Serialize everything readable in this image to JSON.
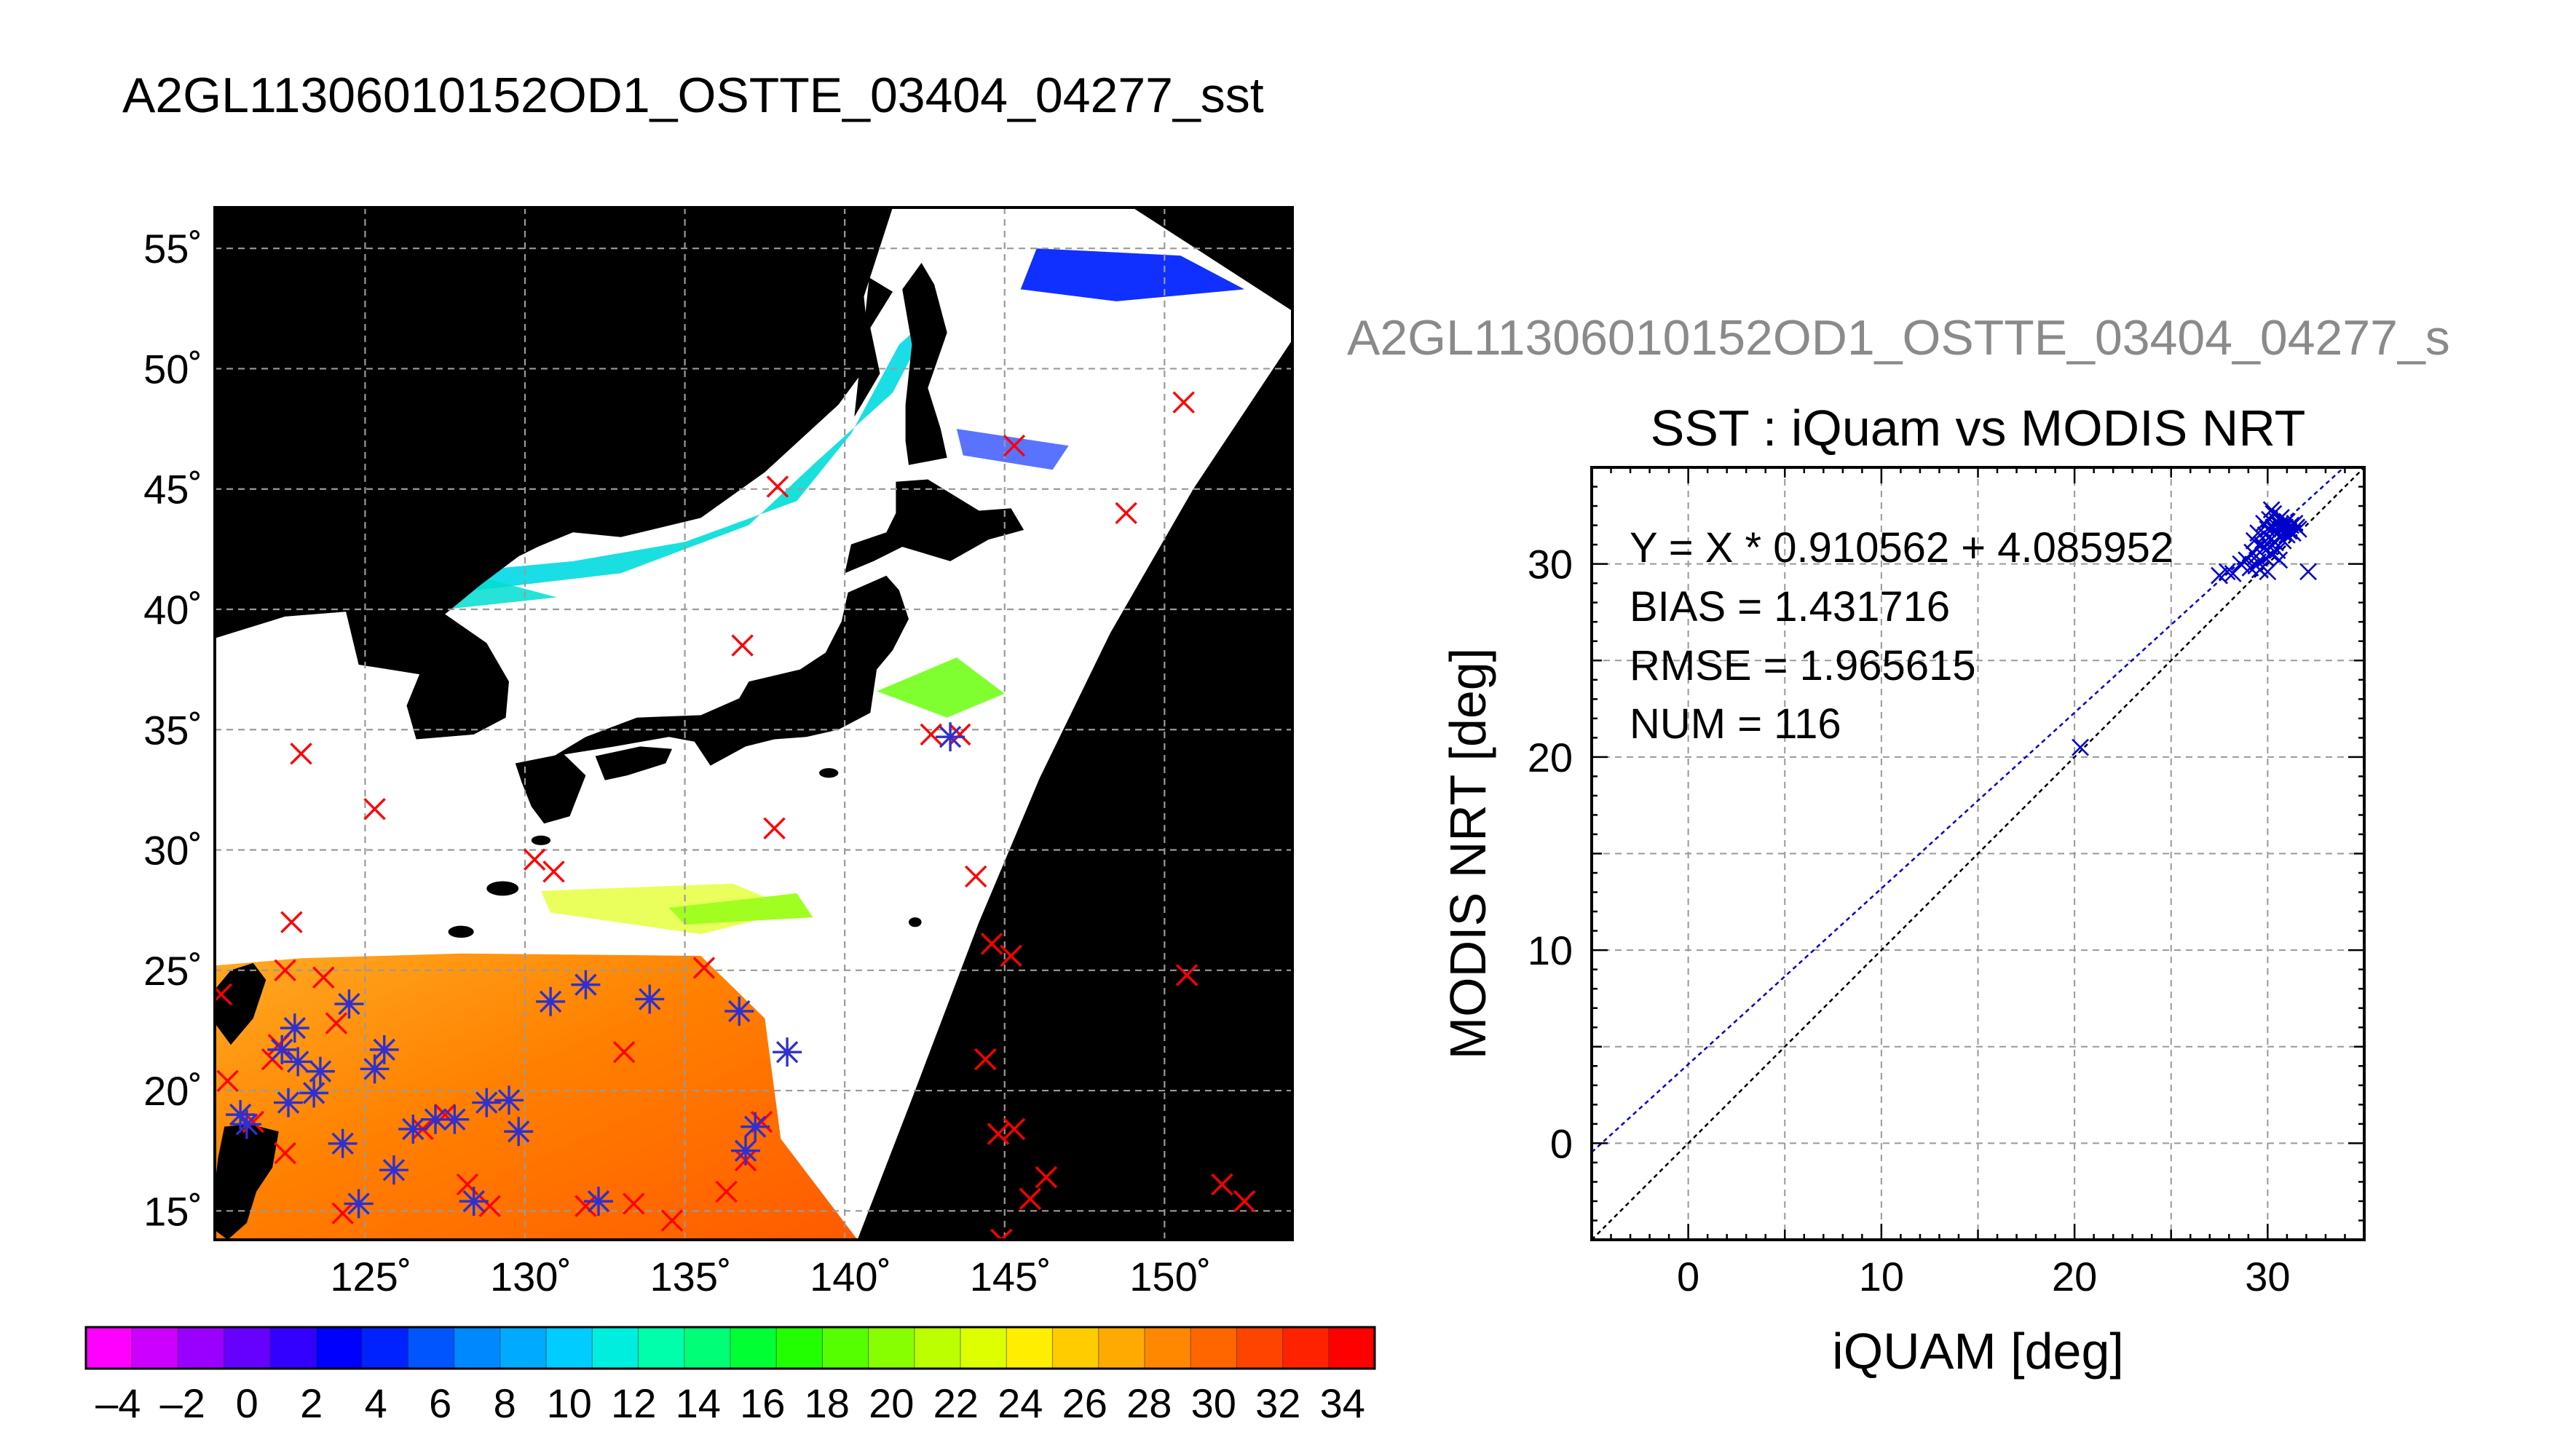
{
  "map_title": "A2GL11306010152OD1_OSTTE_03404_04277_sst",
  "scatter_title": "A2GL11306010152OD1_OSTTE_03404_04277_s",
  "chart_data": [
    {
      "type": "heatmap",
      "lon_ticks": [
        "125˚",
        "130˚",
        "135˚",
        "140˚",
        "145˚",
        "150˚"
      ],
      "lat_ticks": [
        "55˚",
        "50˚",
        "45˚",
        "40˚",
        "35˚",
        "30˚",
        "25˚",
        "20˚",
        "15˚"
      ],
      "lon_range": [
        120.3,
        154
      ],
      "lat_range": [
        13.8,
        56.7
      ],
      "grid": true,
      "colorbar": {
        "range": [
          -5,
          35
        ],
        "tick_labels": [
          "–4",
          "–2",
          "0",
          "2",
          "4",
          "6",
          "8",
          "10",
          "12",
          "14",
          "16",
          "18",
          "20",
          "22",
          "24",
          "26",
          "28",
          "30",
          "32",
          "34"
        ],
        "colors": [
          "#ff00ff",
          "#cc00ff",
          "#9900ff",
          "#6600ff",
          "#3300ff",
          "#0000ff",
          "#0022ff",
          "#0055ff",
          "#0088ff",
          "#00aaff",
          "#00ccff",
          "#00eedd",
          "#00ffaa",
          "#00ff77",
          "#00ff33",
          "#22ff00",
          "#55ff00",
          "#88ff00",
          "#bbff00",
          "#ddff00",
          "#ffee00",
          "#ffcc00",
          "#ffaa00",
          "#ff8800",
          "#ff6600",
          "#ff4400",
          "#ff2200",
          "#ff0000"
        ]
      },
      "land_color": "#000000",
      "cloud_color": "#ffffff",
      "validation_points_red": [
        [
          120.5,
          24
        ],
        [
          120.7,
          20.4
        ],
        [
          121.5,
          18.7
        ],
        [
          122.1,
          21.3
        ],
        [
          122.3,
          21.9
        ],
        [
          122.5,
          17.4
        ],
        [
          122.7,
          27
        ],
        [
          123,
          34
        ],
        [
          122.5,
          25
        ],
        [
          123.7,
          24.7
        ],
        [
          124.1,
          22.8
        ],
        [
          124.3,
          14.9
        ],
        [
          125.3,
          31.7
        ],
        [
          126.8,
          18.4
        ],
        [
          127.5,
          19
        ],
        [
          128.2,
          16.1
        ],
        [
          128.9,
          15.2
        ],
        [
          130.3,
          29.6
        ],
        [
          130.9,
          29.1
        ],
        [
          131.9,
          15.2
        ],
        [
          133.1,
          21.6
        ],
        [
          133.4,
          15.3
        ],
        [
          134.6,
          14.6
        ],
        [
          135.6,
          25.1
        ],
        [
          136.3,
          15.8
        ],
        [
          136.9,
          17.1
        ],
        [
          137.4,
          18.7
        ],
        [
          136.8,
          38.5
        ],
        [
          137.8,
          30.9
        ],
        [
          137.9,
          45.1
        ],
        [
          142.7,
          34.8
        ],
        [
          143.6,
          34.8
        ],
        [
          144.1,
          28.9
        ],
        [
          144.4,
          21.3
        ],
        [
          144.6,
          26.1
        ],
        [
          144.8,
          18.2
        ],
        [
          145.3,
          18.4
        ],
        [
          145.2,
          25.6
        ],
        [
          144.9,
          13.8
        ],
        [
          145.8,
          15.5
        ],
        [
          146.3,
          16.4
        ],
        [
          145.3,
          46.8
        ],
        [
          148.8,
          44
        ],
        [
          150.6,
          48.6
        ],
        [
          150.7,
          24.8
        ],
        [
          151.8,
          16.1
        ],
        [
          152.5,
          15.4
        ]
      ],
      "validation_points_blue": [
        [
          121.1,
          19
        ],
        [
          121.3,
          18.6
        ],
        [
          122.4,
          21.7
        ],
        [
          122.6,
          19.5
        ],
        [
          122.8,
          22.6
        ],
        [
          122.9,
          21.2
        ],
        [
          123.4,
          19.9
        ],
        [
          123.6,
          20.8
        ],
        [
          124.3,
          17.8
        ],
        [
          124.5,
          23.6
        ],
        [
          125.3,
          20.9
        ],
        [
          125.6,
          21.7
        ],
        [
          125.9,
          16.7
        ],
        [
          124.8,
          15.3
        ],
        [
          126.5,
          18.4
        ],
        [
          127.2,
          18.8
        ],
        [
          127.8,
          18.8
        ],
        [
          128.8,
          19.5
        ],
        [
          129.5,
          19.6
        ],
        [
          129.8,
          18.3
        ],
        [
          128.4,
          15.4
        ],
        [
          130.8,
          23.7
        ],
        [
          131.9,
          24.4
        ],
        [
          133.9,
          23.8
        ],
        [
          132.3,
          15.4
        ],
        [
          136.7,
          23.3
        ],
        [
          136.9,
          17.5
        ],
        [
          137.2,
          18.5
        ],
        [
          138.2,
          21.6
        ],
        [
          143.3,
          34.7
        ]
      ]
    },
    {
      "type": "scatter",
      "title": "SST : iQuam vs MODIS NRT",
      "xlabel": "iQUAM [deg]",
      "ylabel": "MODIS NRT [deg]",
      "xlim": [
        -5,
        35
      ],
      "ylim": [
        -5,
        35
      ],
      "xticks": [
        0,
        10,
        20,
        30
      ],
      "yticks": [
        0,
        10,
        20,
        30
      ],
      "grid": true,
      "annotations": [
        "Y = X * 0.910562 + 4.085952",
        "BIAS = 1.431716",
        "RMSE = 1.965615",
        "NUM = 116"
      ],
      "fit": {
        "slope": 0.910562,
        "intercept": 4.085952,
        "color": "#0000cc"
      },
      "identity_line_color": "#000000",
      "point_color": "#0000cc",
      "points": [
        [
          20.3,
          20.5
        ],
        [
          27.5,
          29.4
        ],
        [
          27.9,
          29.6
        ],
        [
          28.2,
          29.5
        ],
        [
          28.6,
          30
        ],
        [
          28.9,
          30.2
        ],
        [
          29.1,
          29.8
        ],
        [
          29.2,
          30.6
        ],
        [
          29.3,
          31.2
        ],
        [
          29.4,
          30.4
        ],
        [
          29.5,
          31.6
        ],
        [
          29.5,
          30.1
        ],
        [
          29.6,
          29.7
        ],
        [
          29.7,
          31
        ],
        [
          29.8,
          30.8
        ],
        [
          29.8,
          32.1
        ],
        [
          29.9,
          30.3
        ],
        [
          29.9,
          31.5
        ],
        [
          30,
          31.8
        ],
        [
          30,
          29.6
        ],
        [
          30.1,
          30.9
        ],
        [
          30.1,
          32.3
        ],
        [
          30.2,
          31.3
        ],
        [
          30.2,
          30.5
        ],
        [
          30.3,
          31.9
        ],
        [
          30.3,
          32.6
        ],
        [
          30.4,
          31.1
        ],
        [
          30.4,
          31.7
        ],
        [
          30.5,
          32.2
        ],
        [
          30.5,
          30.7
        ],
        [
          30.6,
          31.4
        ],
        [
          30.6,
          32
        ],
        [
          30.7,
          31.8
        ],
        [
          30.7,
          32.4
        ],
        [
          30.8,
          31.2
        ],
        [
          30.8,
          31.6
        ],
        [
          30.9,
          32.1
        ],
        [
          30.9,
          31.9
        ],
        [
          31,
          31.5
        ],
        [
          31,
          32.2
        ],
        [
          31.1,
          31.7
        ],
        [
          31.2,
          32
        ],
        [
          31.3,
          31.6
        ],
        [
          31.4,
          32.1
        ],
        [
          31.5,
          31.9
        ],
        [
          31.6,
          31.8
        ],
        [
          32.1,
          29.6
        ],
        [
          29.4,
          29.9
        ],
        [
          30.2,
          32.8
        ],
        [
          30.6,
          30.2
        ]
      ]
    }
  ]
}
